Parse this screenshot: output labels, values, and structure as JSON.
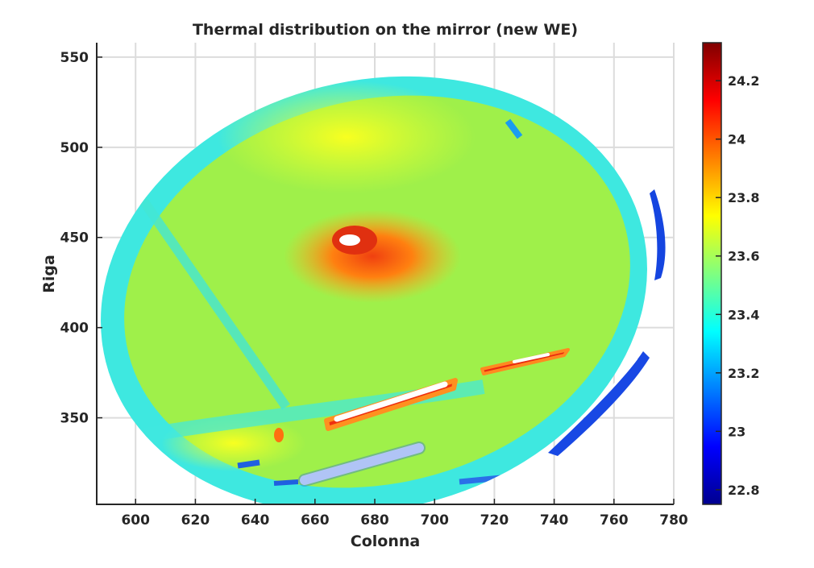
{
  "chart_data": {
    "type": "heatmap",
    "title": "Thermal distribution on the mirror (new WE)",
    "xlabel": "Colonna",
    "ylabel": "Riga",
    "xlim": [
      587,
      780
    ],
    "ylim": [
      302,
      558
    ],
    "xticks": [
      600,
      620,
      640,
      660,
      680,
      700,
      720,
      740,
      760,
      780
    ],
    "yticks": [
      350,
      400,
      450,
      500,
      550
    ],
    "grid": true,
    "colormap": "jet",
    "colorbar": {
      "range": [
        22.75,
        24.33
      ],
      "ticks": [
        22.8,
        23,
        23.2,
        23.4,
        23.6,
        23.8,
        24,
        24.2
      ],
      "tick_labels": [
        "22.8",
        "23",
        "23.2",
        "23.4",
        "23.6",
        "23.8",
        "24",
        "24.2"
      ]
    },
    "description_values": {
      "background_level": 23.55,
      "rim_level": 23.35,
      "hot_spot_center": [
        671,
        449
      ],
      "hot_spot_level": 24.05,
      "strip_levels": [
        24.1,
        24.15
      ],
      "cold_arc_level": 22.95
    }
  }
}
